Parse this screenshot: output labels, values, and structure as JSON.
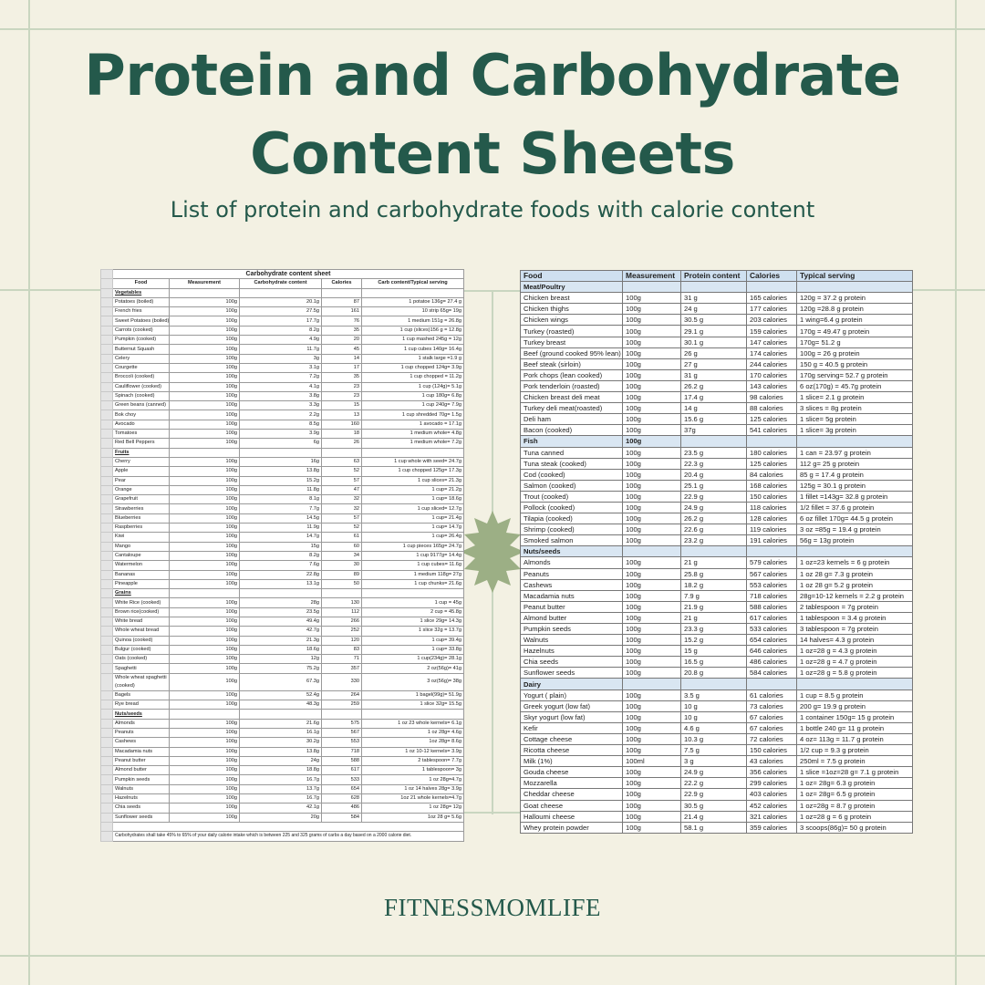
{
  "header": {
    "title": "Protein and Carbohydrate Content Sheets",
    "subtitle": "List of protein and carbohydrate foods with calorie content"
  },
  "carb_sheet": {
    "title": "Carbohydrate content sheet",
    "columns": [
      "Food",
      "Measurement",
      "Carbohydrate content",
      "Calories",
      "Carb content/Typical serving"
    ],
    "rows": [
      [
        "Vegetables"
      ],
      [
        "Potatoes (boiled)",
        "100g",
        "20.1g",
        "87",
        "1 potatoe 136g= 27.4 g"
      ],
      [
        "French fries",
        "100g",
        "27.5g",
        "161",
        "10 strip 65g= 19g"
      ],
      [
        "Sweet Potatoes (boiled)",
        "100g",
        "17.7g",
        "76",
        "1 medium 151g = 26.8g"
      ],
      [
        "Carrots (cooked)",
        "100g",
        "8.2g",
        "35",
        "1 cup (slices)156 g = 12.8g"
      ],
      [
        "Pumpkin (cooked)",
        "100g",
        "4.9g",
        "20",
        "1 cup mashed 245g = 12g"
      ],
      [
        "Butternut Squash",
        "100g",
        "11.7g",
        "45",
        "1 cup cubes 140g= 16.4g"
      ],
      [
        "Celery",
        "100g",
        "3g",
        "14",
        "1 stalk large =1.9 g"
      ],
      [
        "Courgette",
        "100g",
        "3.1g",
        "17",
        "1 cup chopped 124g= 3.9g"
      ],
      [
        "Broccoli (cooked)",
        "100g",
        "7.2g",
        "35",
        "1 cup chopped = 11.2g"
      ],
      [
        "Cauliflower (cooked)",
        "100g",
        "4.1g",
        "23",
        "1 cup (124g)= 5.1g"
      ],
      [
        "Spinach (cooked)",
        "100g",
        "3.8g",
        "23",
        "1 cup 180g= 6.8g"
      ],
      [
        "Green beans (canned)",
        "100g",
        "3.3g",
        "15",
        "1 cup 240g= 7.9g"
      ],
      [
        "Bok choy",
        "100g",
        "2.2g",
        "13",
        "1 cup shredded 70g= 1.5g"
      ],
      [
        "Avocado",
        "100g",
        "8.5g",
        "160",
        "1 avocado = 17.1g"
      ],
      [
        "Tomatoes",
        "100g",
        "3.9g",
        "18",
        "1 medium whole= 4.8g"
      ],
      [
        "Red Bell Peppers",
        "100g",
        "6g",
        "26",
        "1 medium whole= 7.2g"
      ],
      [
        "Fruits"
      ],
      [
        "Cherry",
        "100g",
        "16g",
        "63",
        "1 cup whole with seed= 24.7g"
      ],
      [
        "Apple",
        "100g",
        "13.8g",
        "52",
        "1 cup chopped 125g= 17.3g"
      ],
      [
        "Pear",
        "100g",
        "15.2g",
        "57",
        "1 cup slices= 21.3g"
      ],
      [
        "Orange",
        "100g",
        "11.8g",
        "47",
        "1 cup= 21.2g"
      ],
      [
        "Grapefruit",
        "100g",
        "8.1g",
        "32",
        "1 cup= 18.6g"
      ],
      [
        "Strawberries",
        "100g",
        "7.7g",
        "32",
        "1 cup sliced= 12.7g"
      ],
      [
        "Blueberries",
        "100g",
        "14.5g",
        "57",
        "1 cup= 21.4g"
      ],
      [
        "Raspberries",
        "100g",
        "11.9g",
        "52",
        "1 cup= 14.7g"
      ],
      [
        "Kiwi",
        "100g",
        "14.7g",
        "61",
        "1 cup= 26.4g"
      ],
      [
        "Mango",
        "100g",
        "15g",
        "60",
        "1 cup pieces 165g= 24.7g"
      ],
      [
        "Cantaloupe",
        "100g",
        "8.2g",
        "34",
        "1 cup 9177g= 14.4g"
      ],
      [
        "Watermelon",
        "100g",
        "7.6g",
        "30",
        "1 cup cubes= 11.6g"
      ],
      [
        "Bananas",
        "100g",
        "22.8g",
        "89",
        "1 medium 118g= 27g"
      ],
      [
        "Pineapple",
        "100g",
        "13.1g",
        "50",
        "1 cup chunks= 21.6g"
      ],
      [
        "Grains"
      ],
      [
        "White Rice (cooked)",
        "100g",
        "28g",
        "130",
        "1 cup = 45g"
      ],
      [
        "Brown rice(cooked)",
        "100g",
        "23.5g",
        "112",
        "2 cup = 45.8g"
      ],
      [
        "White bread",
        "100g",
        "49.4g",
        "266",
        "1 slice 29g= 14.3g"
      ],
      [
        "Whole wheat bread",
        "100g",
        "42.7g",
        "252",
        "1 slice 32g = 13.7g"
      ],
      [
        "Quinoa (cooked)",
        "100g",
        "21.3g",
        "120",
        "1 cup= 39.4g"
      ],
      [
        "Bulgur (cooked)",
        "100g",
        "18.6g",
        "83",
        "1 cup= 33.8g"
      ],
      [
        "Oats (cooked)",
        "100g",
        "12g",
        "71",
        "1 cup(234g)= 28.1g"
      ],
      [
        "Spaghetti",
        "100g",
        "75.2g",
        "357",
        "2 oz(56g)= 41g"
      ],
      [
        "Whole wheat spaghetti (cooked)",
        "100g",
        "67.3g",
        "330",
        "3 oz(56g)= 38g"
      ],
      [
        "Bagels",
        "100g",
        "52.4g",
        "264",
        "1 bagel(99g)= 51.9g"
      ],
      [
        "Rye bread",
        "100g",
        "48.3g",
        "259",
        "1 slice 32g= 15.5g"
      ],
      [
        "Nuts/seeds"
      ],
      [
        "Almonds",
        "100g",
        "21.6g",
        "575",
        "1 oz 23 whole kernels= 6.1g"
      ],
      [
        "Peanuts",
        "100g",
        "16.1g",
        "567",
        "1 oz 28g= 4.6g"
      ],
      [
        "Cashews",
        "100g",
        "30.2g",
        "553",
        "1oz 28g= 8.6g"
      ],
      [
        "Macadamia nuts",
        "100g",
        "13.8g",
        "718",
        "1 oz 10-12 kernels= 3.9g"
      ],
      [
        "Peanut butter",
        "100g",
        "24g",
        "588",
        "2 tablespoon= 7.7g"
      ],
      [
        "Almond butter",
        "100g",
        "18.8g",
        "617",
        "1 tablespoon= 3g"
      ],
      [
        "Pumpkin seeds",
        "100g",
        "16.7g",
        "533",
        "1 oz 28g=4.7g"
      ],
      [
        "Walnuts",
        "100g",
        "13.7g",
        "654",
        "1 oz 14 halves 28g= 3.9g"
      ],
      [
        "Hazelnuts",
        "100g",
        "16.7g",
        "628",
        "1oz 21 whole kernels=4.7g"
      ],
      [
        "Chia seeds",
        "100g",
        "42.1g",
        "486",
        "1 oz 28g= 12g"
      ],
      [
        "Sunflower seeds",
        "100g",
        "20g",
        "584",
        "1oz 28 g= 5.6g"
      ]
    ],
    "note": "Carbohydrates shall take 45% to 65% of your daily calorie intake which is between 225 and 325 grams of carbs a day based on a 2000 calorie diet."
  },
  "protein_sheet": {
    "columns": [
      "Food",
      "Measurement",
      "Protein content",
      "Calories",
      "Typical serving"
    ],
    "rows": [
      [
        "Meat/Poultry"
      ],
      [
        "Chicken breast",
        "100g",
        "31 g",
        "165 calories",
        "120g = 37.2 g protein"
      ],
      [
        "Chicken thighs",
        "100g",
        "24 g",
        "177 calories",
        "120g =28.8 g protein"
      ],
      [
        "Chicken wings",
        "100g",
        "30.5 g",
        "203 calories",
        "1 wing=6.4 g protein"
      ],
      [
        "Turkey (roasted)",
        "100g",
        "29.1 g",
        "159 calories",
        "170g = 49.47 g protein"
      ],
      [
        "Turkey breast",
        "100g",
        "30.1 g",
        "147 calories",
        "170g= 51.2 g"
      ],
      [
        "Beef (ground cooked 95% lean)",
        "100g",
        "26 g",
        "174 calories",
        "100g = 26 g protein"
      ],
      [
        "Beef steak (sirloin)",
        "100g",
        "27 g",
        "244 calories",
        "150 g = 40.5 g protein"
      ],
      [
        "Pork chops (lean cooked)",
        "100g",
        "31 g",
        "170 calories",
        "170g serving= 52.7 g protein"
      ],
      [
        "Pork tenderloin (roasted)",
        "100g",
        "26.2 g",
        "143 calories",
        "6 oz(170g) = 45.7g protein"
      ],
      [
        "Chicken breast deli meat",
        "100g",
        "17.4 g",
        "98 calories",
        "1 slice= 2.1 g protein"
      ],
      [
        "Turkey deli meat(roasted)",
        "100g",
        "14 g",
        "88 calories",
        "3 slices = 8g protein"
      ],
      [
        "Deli ham",
        "100g",
        "15.6 g",
        "125 calories",
        "1 slice= 5g protein"
      ],
      [
        "Bacon (cooked)",
        "100g",
        "37g",
        "541 calories",
        "1 slice= 3g protein"
      ],
      [
        "Fish",
        "100g"
      ],
      [
        "Tuna canned",
        "100g",
        "23.5 g",
        "180 calories",
        "1 can = 23.97 g protein"
      ],
      [
        "Tuna steak  (cooked)",
        "100g",
        "22.3 g",
        "125 calories",
        "112 g= 25 g protein"
      ],
      [
        "Cod  (cooked)",
        "100g",
        "20.4 g",
        "84 calories",
        "85 g = 17.4 g protein"
      ],
      [
        "Salmon  (cooked)",
        "100g",
        "25.1 g",
        "168 calories",
        "125g = 30.1 g protein"
      ],
      [
        "Trout (cooked)",
        "100g",
        "22.9 g",
        "150 calories",
        "1 fillet =143g= 32.8 g protein"
      ],
      [
        "Pollock  (cooked)",
        "100g",
        "24.9 g",
        "118 calories",
        "1/2 fillet = 37.6 g protein"
      ],
      [
        "Tilapia  (cooked)",
        "100g",
        "26.2 g",
        "128 calories",
        "6 oz fillet 170g= 44.5 g protein"
      ],
      [
        "Shrimp (cooked)",
        "100g",
        "22.6 g",
        "119 calories",
        "3 oz =85g = 19.4 g protein"
      ],
      [
        "Smoked salmon",
        "100g",
        "23.2 g",
        "191 calories",
        "56g = 13g protein"
      ],
      [
        "Nuts/seeds"
      ],
      [
        "Almonds",
        "100g",
        "21 g",
        "579 calories",
        "1 oz=23 kernels = 6 g protein"
      ],
      [
        "Peanuts",
        "100g",
        "25.8 g",
        "567 calories",
        "1 oz 28 g= 7.3 g protein"
      ],
      [
        "Cashews",
        "100g",
        "18.2 g",
        "553 calories",
        "1 oz 28 g= 5.2 g protein"
      ],
      [
        "Macadamia nuts",
        "100g",
        "7.9 g",
        "718 calories",
        "28g=10-12 kernels = 2.2 g protein"
      ],
      [
        "Peanut butter",
        "100g",
        "21.9 g",
        "588 calories",
        "2 tablespoon = 7g protein"
      ],
      [
        "Almond butter",
        "100g",
        "21 g",
        "617 calories",
        "1 tablespoon = 3.4 g protein"
      ],
      [
        "Pumpkin seeds",
        "100g",
        "23.3 g",
        "533 calories",
        "3 tablespoon = 7g protein"
      ],
      [
        "Walnuts",
        "100g",
        "15.2 g",
        "654 calories",
        "14 halves= 4.3 g protein"
      ],
      [
        "Hazelnuts",
        "100g",
        "15 g",
        "646 calories",
        "1 oz=28 g = 4.3 g protein"
      ],
      [
        "Chia seeds",
        "100g",
        "16.5 g",
        "486 calories",
        "1 oz=28 g = 4.7 g protein"
      ],
      [
        "Sunflower seeds",
        "100g",
        "20.8 g",
        "584 calories",
        "1 oz=28 g = 5.8 g protein"
      ],
      [
        "Dairy"
      ],
      [
        "Yogurt ( plain)",
        "100g",
        "3.5 g",
        "61 calories",
        "1 cup = 8.5 g protein"
      ],
      [
        "Greek yogurt (low fat)",
        "100g",
        "10 g",
        "73 calories",
        "200 g= 19.9 g protein"
      ],
      [
        "Skyr yogurt (low fat)",
        "100g",
        "10 g",
        "67 calories",
        "1 container 150g= 15 g protein"
      ],
      [
        "Kefir",
        "100g",
        "4.6 g",
        "67 calories",
        "1 bottle 240 g= 11 g protein"
      ],
      [
        "Cottage cheese",
        "100g",
        "10.3 g",
        "72 calories",
        "4 oz= 113g = 11.7 g protein"
      ],
      [
        "Ricotta cheese",
        "100g",
        "7.5 g",
        "150 calories",
        "1/2 cup = 9.3 g protein"
      ],
      [
        "Milk (1%)",
        "100ml",
        "3 g",
        "43 calories",
        "250ml = 7.5 g protein"
      ],
      [
        "Gouda cheese",
        "100g",
        "24.9 g",
        "356 calories",
        "1 slice =1oz=28 g= 7.1 g protein"
      ],
      [
        "Mozzarella",
        "100g",
        "22.2 g",
        "299 calories",
        "1 oz= 28g= 6.3 g protein"
      ],
      [
        "Cheddar cheese",
        "100g",
        "22.9 g",
        "403 calories",
        "1 oz= 28g= 6.5 g protein"
      ],
      [
        "Goat cheese",
        "100g",
        "30.5 g",
        "452 calories",
        "1 oz=28g = 8.7 g protein"
      ],
      [
        "Halloumi cheese",
        "100g",
        "21.4 g",
        "321 calories",
        "1 oz=28 g = 6 g protein"
      ],
      [
        "Whey protein powder",
        "100g",
        "58.1 g",
        "359 calories",
        "3 scoops(86g)= 50 g protein"
      ]
    ]
  },
  "footer": {
    "brand": "FITNESSMOMLIFE"
  }
}
